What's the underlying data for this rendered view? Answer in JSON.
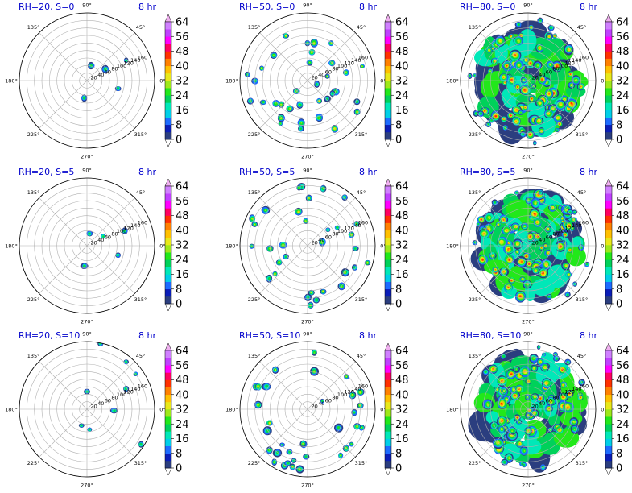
{
  "figure": {
    "colormap": [
      "#ffffff",
      "#2b3e7f",
      "#0a1db8",
      "#1d6bff",
      "#00cfe8",
      "#00e8b8",
      "#00d15a",
      "#22e81a",
      "#9ee81a",
      "#e8e81a",
      "#ffc000",
      "#ff8000",
      "#ff3000",
      "#ff0060",
      "#ff00ff",
      "#c040ff",
      "#d080ff",
      "#f0b0f0"
    ],
    "contour_levels": [
      0,
      4,
      8,
      12,
      16,
      20,
      24,
      28,
      32,
      36,
      40,
      44,
      48,
      52,
      56,
      60,
      64,
      68
    ]
  },
  "chart_data": [
    {
      "type": "polar-contour",
      "title_left": "RH=20, S=0",
      "title_right": "8 hr",
      "colorbar_ticks": [
        "0",
        "8",
        "16",
        "24",
        "32",
        "40",
        "48",
        "56",
        "64"
      ],
      "angular_ticks": [
        "0°",
        "45°",
        "90°",
        "135°",
        "180°",
        "225°",
        "270°",
        "315°"
      ],
      "radial_ticks": [
        "20",
        "40",
        "60",
        "80",
        "100",
        "120",
        "140",
        "160"
      ],
      "rlim": [
        0,
        180
      ]
    },
    {
      "type": "polar-contour",
      "title_left": "RH=50, S=0",
      "title_right": "8 hr",
      "colorbar_ticks": [
        "0",
        "8",
        "16",
        "24",
        "32",
        "40",
        "48",
        "56",
        "64"
      ],
      "angular_ticks": [
        "0°",
        "45°",
        "90°",
        "135°",
        "180°",
        "225°",
        "270°",
        "315°"
      ],
      "radial_ticks": [
        "20",
        "40",
        "60",
        "80",
        "100",
        "120",
        "140",
        "160"
      ],
      "rlim": [
        0,
        180
      ]
    },
    {
      "type": "polar-contour",
      "title_left": "RH=80, S=0",
      "title_right": "8 hr",
      "colorbar_ticks": [
        "0",
        "8",
        "16",
        "24",
        "32",
        "40",
        "48",
        "56",
        "64"
      ],
      "angular_ticks": [
        "0°",
        "45°",
        "90°",
        "135°",
        "180°",
        "225°",
        "270°",
        "315°"
      ],
      "radial_ticks": [
        "20",
        "40",
        "60",
        "80",
        "100",
        "120",
        "140",
        "160"
      ],
      "rlim": [
        0,
        180
      ]
    },
    {
      "type": "polar-contour",
      "title_left": "RH=20, S=5",
      "title_right": "8 hr",
      "colorbar_ticks": [
        "0",
        "8",
        "16",
        "24",
        "32",
        "40",
        "48",
        "56",
        "64"
      ],
      "angular_ticks": [
        "0°",
        "45°",
        "90°",
        "135°",
        "180°",
        "225°",
        "270°",
        "315°"
      ],
      "radial_ticks": [
        "20",
        "40",
        "60",
        "80",
        "100",
        "120",
        "140",
        "160"
      ],
      "rlim": [
        0,
        180
      ]
    },
    {
      "type": "polar-contour",
      "title_left": "RH=50, S=5",
      "title_right": "8 hr",
      "colorbar_ticks": [
        "0",
        "8",
        "16",
        "24",
        "32",
        "40",
        "48",
        "56",
        "64"
      ],
      "angular_ticks": [
        "0°",
        "45°",
        "90°",
        "135°",
        "180°",
        "225°",
        "270°",
        "315°"
      ],
      "radial_ticks": [
        "20",
        "40",
        "60",
        "80",
        "100",
        "120",
        "140",
        "160"
      ],
      "rlim": [
        0,
        180
      ]
    },
    {
      "type": "polar-contour",
      "title_left": "RH=80, S=5",
      "title_right": "8 hr",
      "colorbar_ticks": [
        "0",
        "8",
        "16",
        "24",
        "32",
        "40",
        "48",
        "56",
        "64"
      ],
      "angular_ticks": [
        "0°",
        "45°",
        "90°",
        "135°",
        "180°",
        "225°",
        "270°",
        "315°"
      ],
      "radial_ticks": [
        "20",
        "40",
        "60",
        "80",
        "100",
        "120",
        "140",
        "160"
      ],
      "rlim": [
        0,
        180
      ]
    },
    {
      "type": "polar-contour",
      "title_left": "RH=20, S=10",
      "title_right": "8 hr",
      "colorbar_ticks": [
        "0",
        "8",
        "16",
        "24",
        "32",
        "40",
        "48",
        "56",
        "64"
      ],
      "angular_ticks": [
        "0°",
        "45°",
        "90°",
        "135°",
        "180°",
        "225°",
        "270°",
        "315°"
      ],
      "radial_ticks": [
        "20",
        "40",
        "60",
        "80",
        "100",
        "120",
        "140",
        "160"
      ],
      "rlim": [
        0,
        180
      ]
    },
    {
      "type": "polar-contour",
      "title_left": "RH=50, S=10",
      "title_right": "8 hr",
      "colorbar_ticks": [
        "0",
        "8",
        "16",
        "24",
        "32",
        "40",
        "48",
        "56",
        "64"
      ],
      "angular_ticks": [
        "0°",
        "45°",
        "90°",
        "135°",
        "180°",
        "225°",
        "270°",
        "315°"
      ],
      "radial_ticks": [
        "20",
        "40",
        "60",
        "80",
        "100",
        "120",
        "140",
        "160"
      ],
      "rlim": [
        0,
        180
      ]
    },
    {
      "type": "polar-contour",
      "title_left": "RH=80, S=10",
      "title_right": "8 hr",
      "colorbar_ticks": [
        "0",
        "8",
        "16",
        "24",
        "32",
        "40",
        "48",
        "56",
        "64"
      ],
      "angular_ticks": [
        "0°",
        "45°",
        "90°",
        "135°",
        "180°",
        "225°",
        "270°",
        "315°"
      ],
      "radial_ticks": [
        "20",
        "40",
        "60",
        "80",
        "100",
        "120",
        "140",
        "160"
      ],
      "rlim": [
        0,
        180
      ]
    }
  ]
}
